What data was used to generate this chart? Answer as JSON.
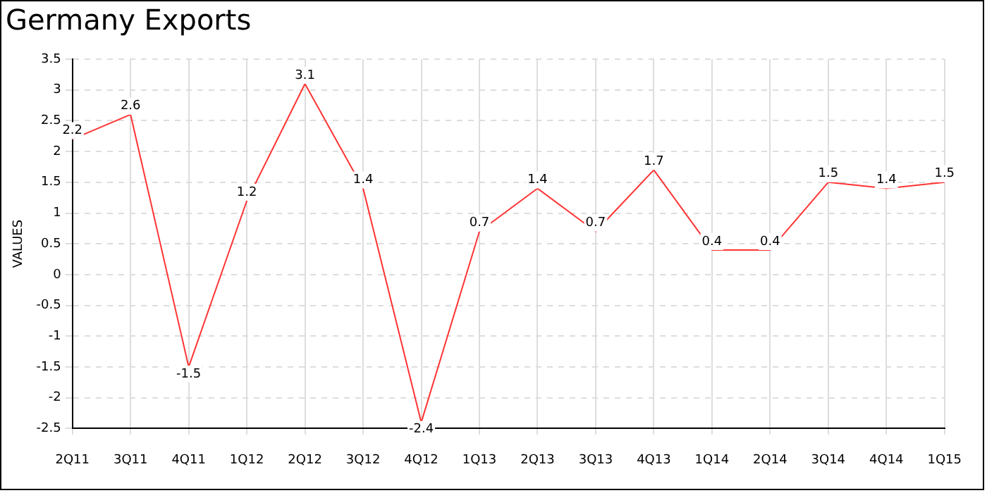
{
  "chart_data": {
    "type": "line",
    "title": "Germany Exports",
    "ylabel": "VALUES",
    "categories": [
      "2Q11",
      "3Q11",
      "4Q11",
      "1Q12",
      "2Q12",
      "3Q12",
      "4Q12",
      "1Q13",
      "2Q13",
      "3Q13",
      "4Q13",
      "1Q14",
      "2Q14",
      "3Q14",
      "4Q14",
      "1Q15"
    ],
    "series": [
      {
        "color": "#ff3333",
        "values": [
          2.2,
          2.6,
          -1.5,
          1.2,
          3.1,
          1.4,
          -2.4,
          0.7,
          1.4,
          0.7,
          1.7,
          0.4,
          0.4,
          1.5,
          1.4,
          1.5
        ]
      }
    ],
    "ylim": [
      -2.5,
      3.5
    ],
    "yticks": [
      -2.5,
      -2,
      -1.5,
      -1,
      -0.5,
      0,
      0.5,
      1,
      1.5,
      2,
      2.5,
      3,
      3.5
    ],
    "grid": true,
    "line_style": "solid",
    "data_labels": true,
    "legend": false,
    "marker": "none"
  }
}
